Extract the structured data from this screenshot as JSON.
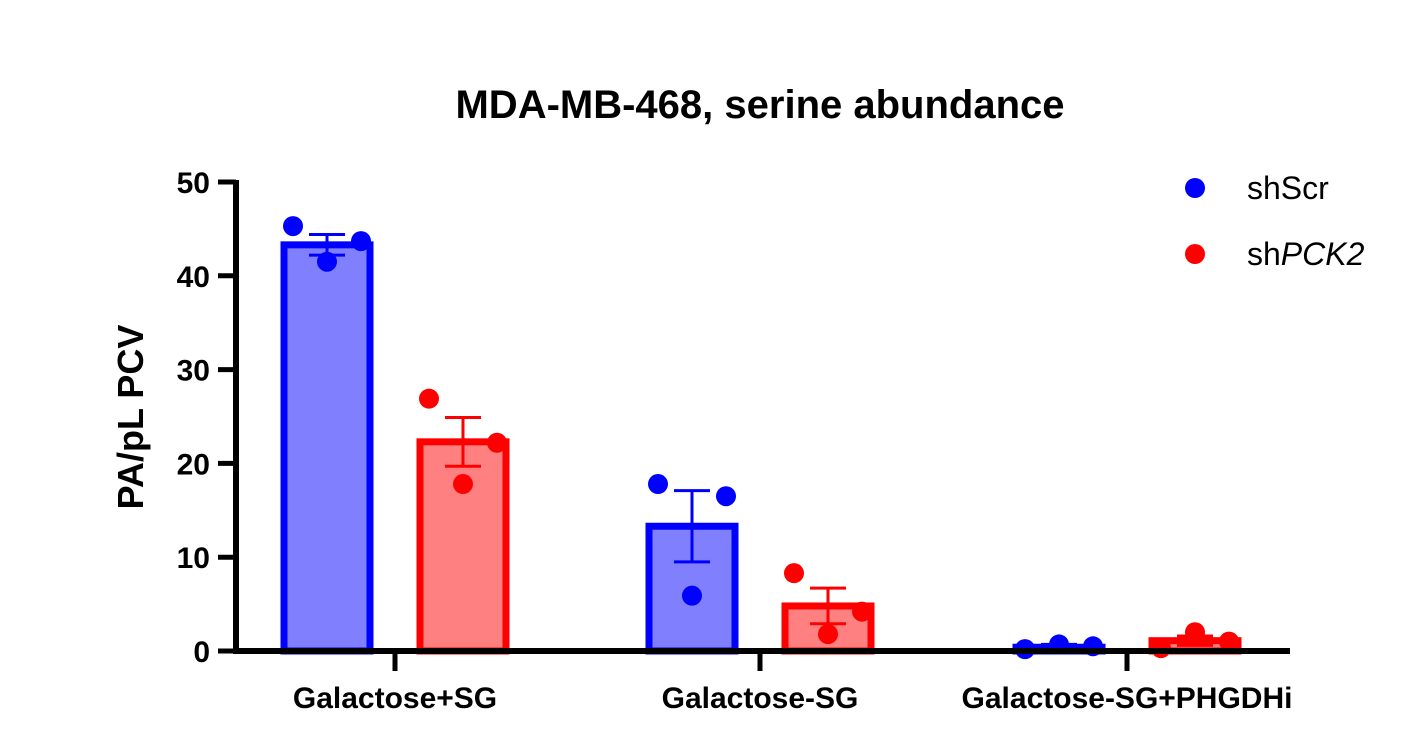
{
  "chart_data": {
    "type": "bar",
    "title": "MDA-MB-468, serine abundance",
    "xlabel": "",
    "ylabel": "PA/pL PCV",
    "ylim": [
      0,
      50
    ],
    "yticks": [
      0,
      10,
      20,
      30,
      40,
      50
    ],
    "categories": [
      "Galactose+SG",
      "Galactose-SG",
      "Galactose-SG+PHGDHi"
    ],
    "legend_position": "top-right",
    "series": [
      {
        "name": "shScr",
        "name_prefix": "sh",
        "name_suffix": "Scr",
        "suffix_italic": false,
        "color": "#0000FF",
        "fill": "#8080FF",
        "values": [
          43.3,
          13.3,
          0.4
        ],
        "error": [
          1.1,
          3.8,
          0.3
        ],
        "points": [
          [
            45.3,
            41.5,
            43.7
          ],
          [
            17.8,
            5.9,
            16.5
          ],
          [
            0.2,
            0.7,
            0.5
          ]
        ]
      },
      {
        "name": "shPCK2",
        "name_prefix": "sh",
        "name_suffix": "PCK2",
        "suffix_italic": true,
        "color": "#FF0000",
        "fill": "#FF8080",
        "values": [
          22.3,
          4.8,
          1.1
        ],
        "error": [
          2.6,
          1.9,
          0.5
        ],
        "points": [
          [
            26.9,
            17.8,
            22.2
          ],
          [
            8.3,
            1.8,
            4.2
          ],
          [
            0.3,
            2.0,
            1.0
          ]
        ]
      }
    ]
  }
}
